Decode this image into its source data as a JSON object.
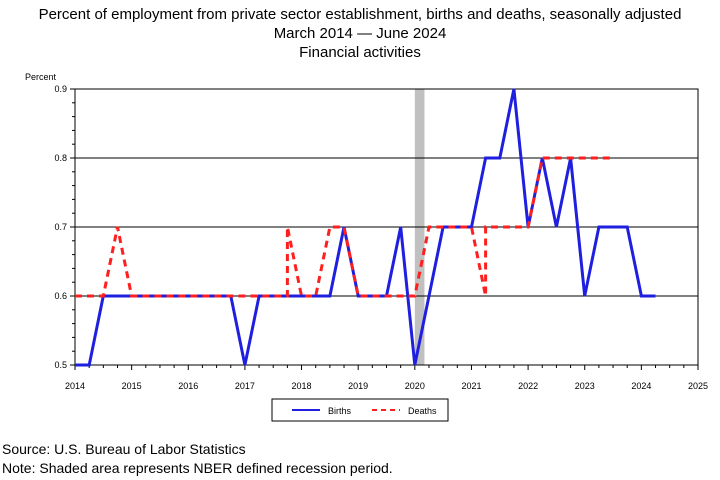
{
  "title_line1": "Percent of employment from private sector establishment, births and deaths, seasonally adjusted",
  "title_line2": "March 2014 — June 2024",
  "title_line3": "Financial activities",
  "source": "Source: U.S. Bureau of Labor Statistics",
  "note": "Note: Shaded area represents NBER defined recession period.",
  "chart_data": {
    "type": "line",
    "ylabel": "Percent",
    "xlabel": "",
    "xlim": [
      2014,
      2025
    ],
    "ylim": [
      0.5,
      0.9
    ],
    "yticks": [
      "0.5",
      "0.6",
      "0.7",
      "0.8",
      "0.9"
    ],
    "xticks": [
      "2014",
      "2015",
      "2016",
      "2017",
      "2018",
      "2019",
      "2020",
      "2021",
      "2022",
      "2023",
      "2024",
      "2025"
    ],
    "grid": "horizontal",
    "legend": "bottom",
    "recession": {
      "start": 2020.0,
      "end": 2020.17
    },
    "series": [
      {
        "name": "Births",
        "color": "#1f1fe0",
        "style": "solid",
        "points": [
          [
            2014.0,
            0.5
          ],
          [
            2014.25,
            0.5
          ],
          [
            2014.5,
            0.6
          ],
          [
            2014.75,
            0.6
          ],
          [
            2016.75,
            0.6
          ],
          [
            2017.0,
            0.5
          ],
          [
            2017.25,
            0.6
          ],
          [
            2017.5,
            0.6
          ],
          [
            2018.5,
            0.6
          ],
          [
            2018.75,
            0.7
          ],
          [
            2019.0,
            0.6
          ],
          [
            2019.5,
            0.6
          ],
          [
            2019.75,
            0.7
          ],
          [
            2020.0,
            0.5
          ],
          [
            2020.25,
            0.6
          ],
          [
            2020.5,
            0.7
          ],
          [
            2021.0,
            0.7
          ],
          [
            2021.25,
            0.8
          ],
          [
            2021.5,
            0.8
          ],
          [
            2021.75,
            0.9
          ],
          [
            2022.0,
            0.7
          ],
          [
            2022.25,
            0.8
          ],
          [
            2022.5,
            0.7
          ],
          [
            2022.75,
            0.8
          ],
          [
            2023.0,
            0.6
          ],
          [
            2023.25,
            0.7
          ],
          [
            2023.75,
            0.7
          ],
          [
            2024.0,
            0.6
          ],
          [
            2024.25,
            0.6
          ]
        ]
      },
      {
        "name": "Deaths",
        "color": "#ff1f1f",
        "style": "dashed",
        "points": [
          [
            2014.0,
            0.6
          ],
          [
            2014.5,
            0.6
          ],
          [
            2014.75,
            0.7
          ],
          [
            2015.0,
            0.6
          ],
          [
            2017.75,
            0.6
          ],
          [
            2017.75,
            0.6
          ],
          [
            2017.75,
            0.7
          ],
          [
            2018.0,
            0.6
          ],
          [
            2018.25,
            0.6
          ],
          [
            2018.5,
            0.7
          ],
          [
            2018.75,
            0.7
          ],
          [
            2019.0,
            0.6
          ],
          [
            2020.0,
            0.6
          ],
          [
            2020.25,
            0.7
          ],
          [
            2021.0,
            0.7
          ],
          [
            2021.25,
            0.6
          ],
          [
            2021.25,
            0.6
          ],
          [
            2021.25,
            0.7
          ],
          [
            2022.0,
            0.7
          ],
          [
            2022.25,
            0.8
          ],
          [
            2023.5,
            0.8
          ]
        ]
      }
    ]
  }
}
